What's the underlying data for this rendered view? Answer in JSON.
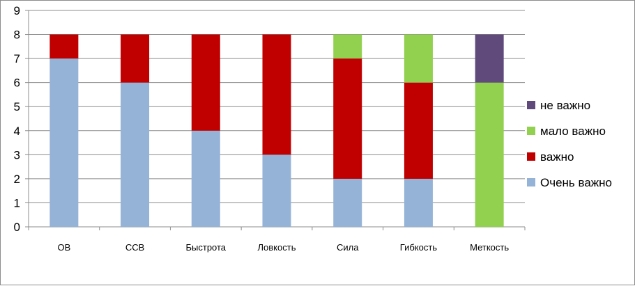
{
  "chart_data": {
    "type": "bar",
    "stacked": true,
    "categories": [
      "ОВ",
      "ССВ",
      "Быстрота",
      "Ловкость",
      "Сила",
      "Гибкость",
      "Меткость"
    ],
    "series": [
      {
        "name": "Очень важно",
        "color": "#95b3d7",
        "values": [
          7,
          6,
          4,
          3,
          2,
          2,
          0
        ]
      },
      {
        "name": "важно",
        "color": "#c00000",
        "values": [
          1,
          2,
          4,
          5,
          5,
          4,
          0
        ]
      },
      {
        "name": "мало важно",
        "color": "#92d050",
        "values": [
          0,
          0,
          0,
          0,
          1,
          2,
          6
        ]
      },
      {
        "name": "не важно",
        "color": "#604a7b",
        "values": [
          0,
          0,
          0,
          0,
          0,
          0,
          2
        ]
      }
    ],
    "y_ticks": [
      "0",
      "1",
      "2",
      "3",
      "4",
      "5",
      "6",
      "7",
      "8",
      "9"
    ],
    "ylim": [
      0,
      9
    ],
    "grid": true,
    "legend_position": "right",
    "legend_order": [
      "не важно",
      "мало важно",
      "важно",
      "Очень важно"
    ],
    "title": "",
    "xlabel": "",
    "ylabel": ""
  }
}
